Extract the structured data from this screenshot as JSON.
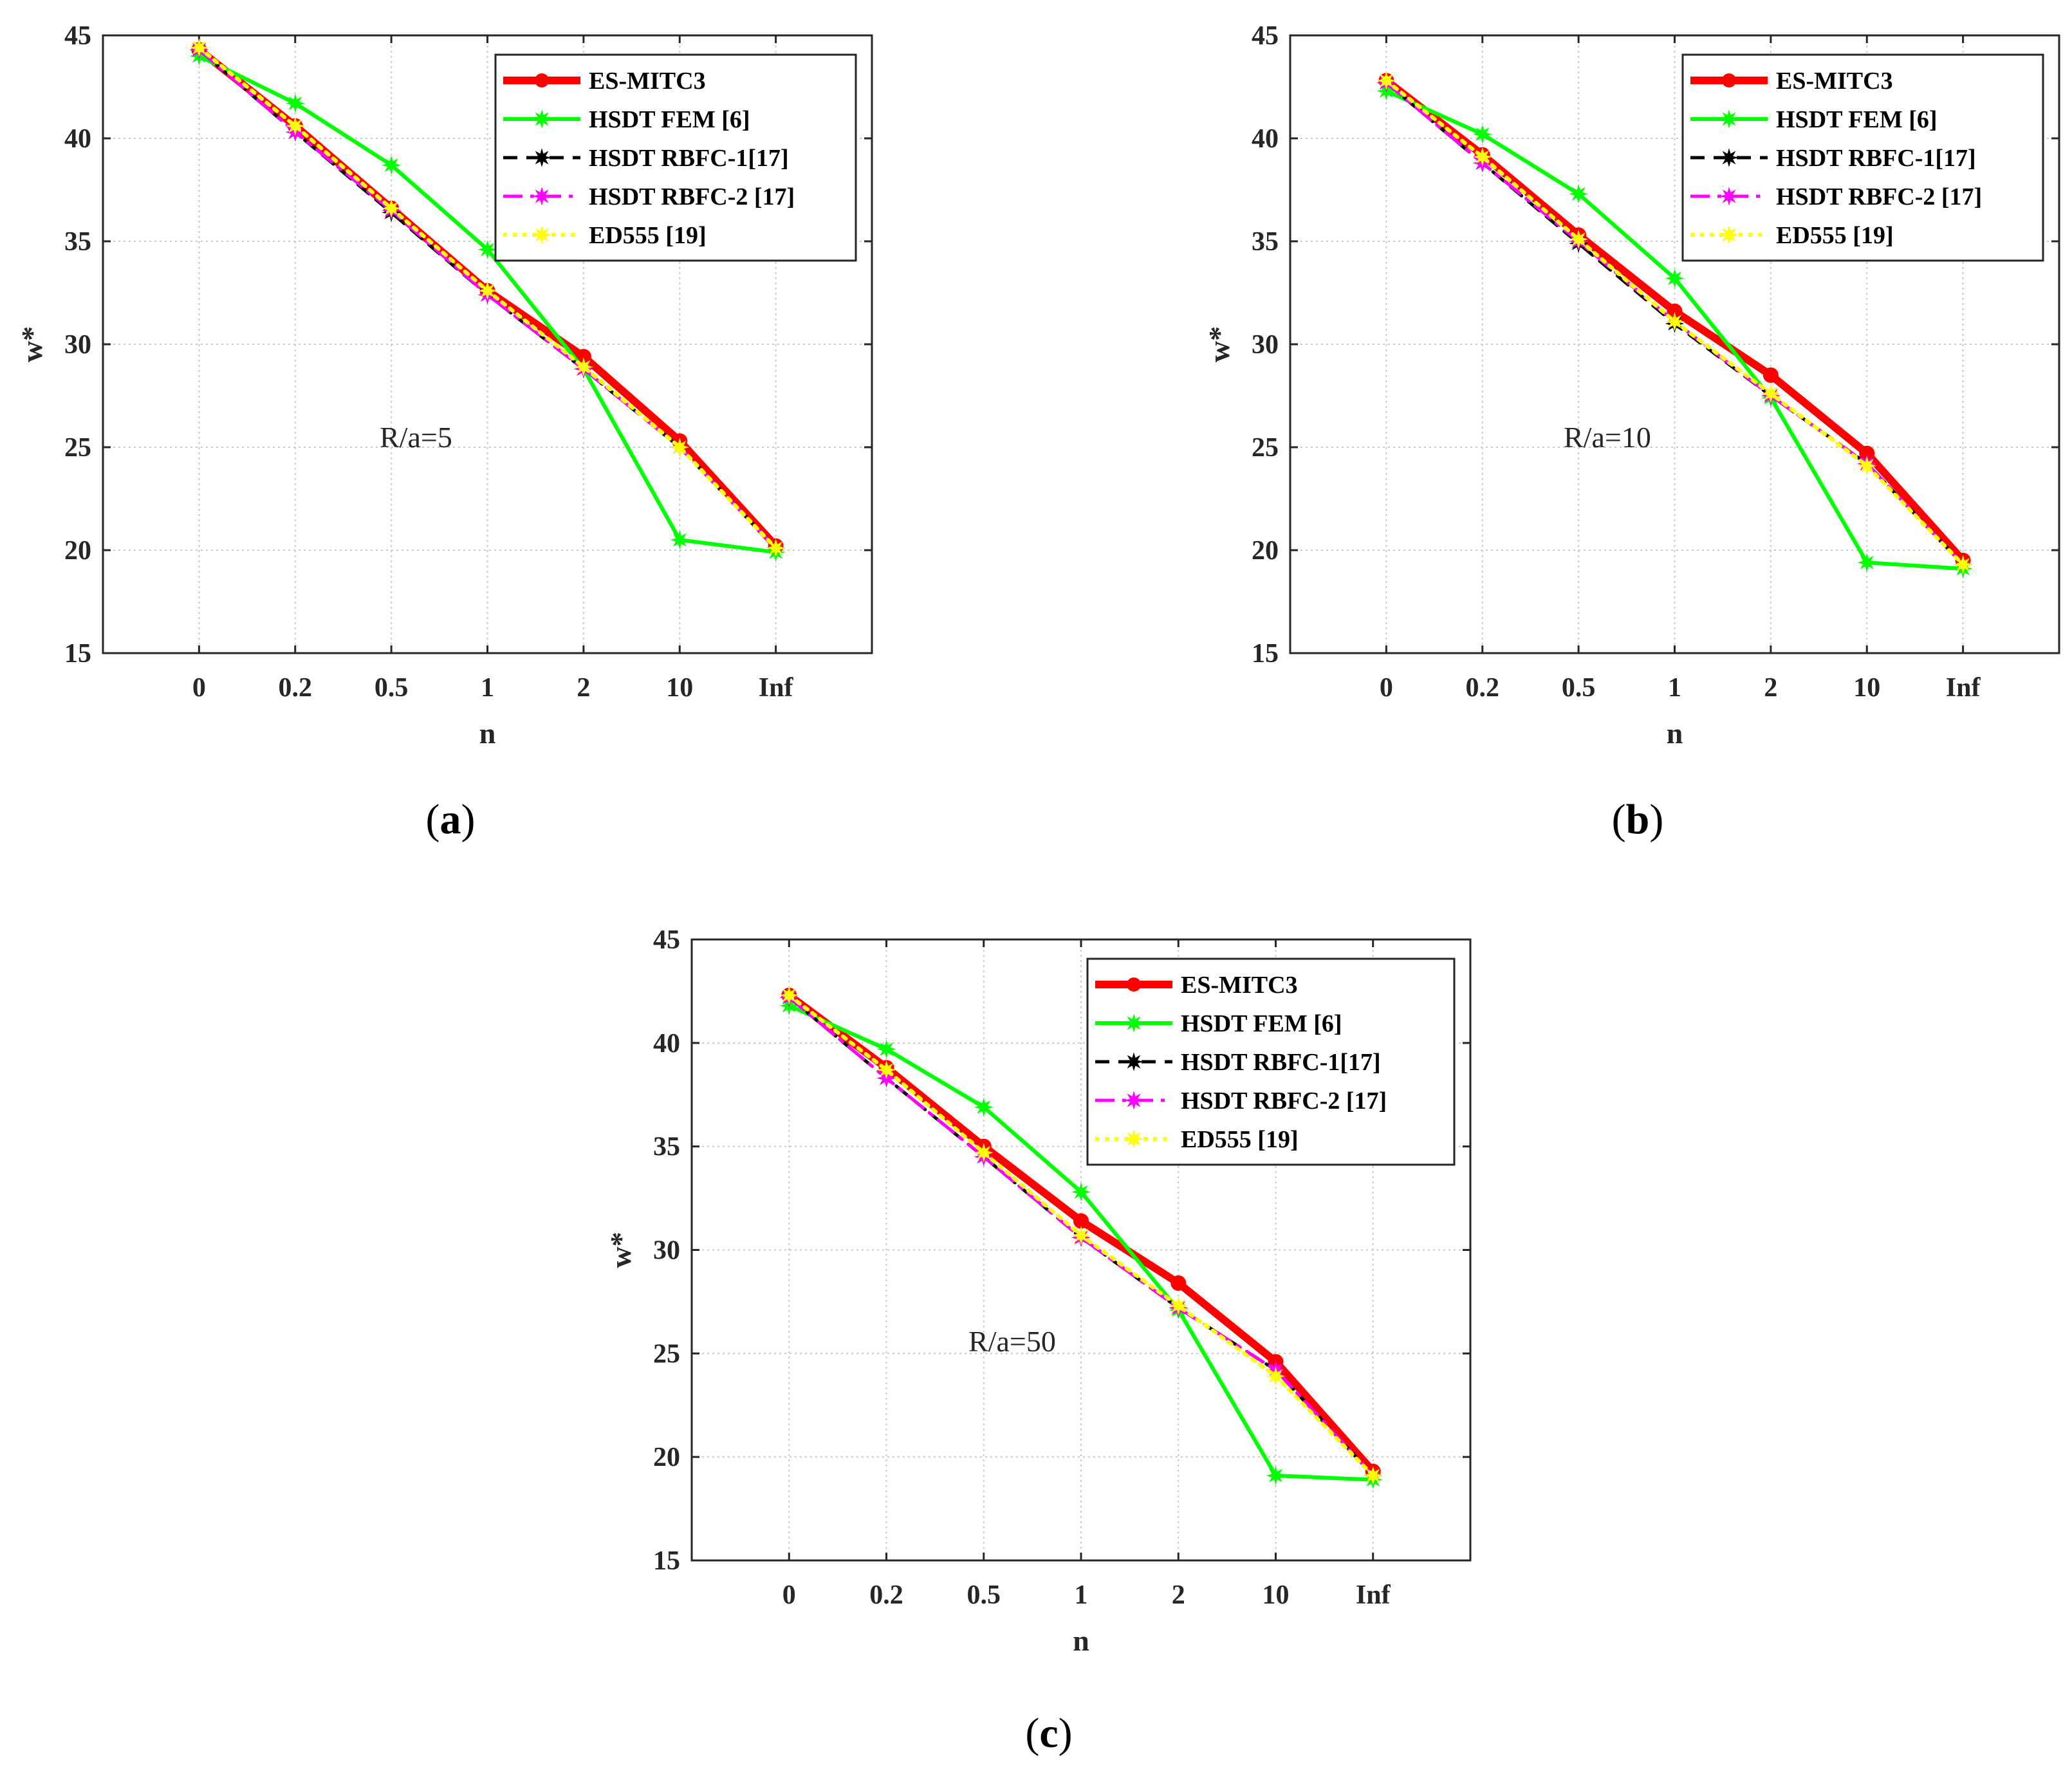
{
  "chart_data": [
    {
      "type": "line",
      "caption": {
        "open": "(",
        "letter": "a",
        "close": ")"
      },
      "annotation": "R/a=5",
      "xlabel": "n",
      "ylabel": "w*",
      "ylim": [
        15,
        45
      ],
      "yticks": [
        "15",
        "20",
        "25",
        "30",
        "35",
        "40",
        "45"
      ],
      "categories": [
        "0",
        "0.2",
        "0.5",
        "1",
        "2",
        "10",
        "Inf"
      ],
      "grid": true,
      "legend_position": "top-right",
      "series": [
        {
          "name": "ES-MITC3",
          "color": "#ff0000",
          "values": [
            44.3,
            40.6,
            36.6,
            32.6,
            29.4,
            25.3,
            20.2
          ]
        },
        {
          "name": "HSDT FEM [6]",
          "color": "#00ff00",
          "values": [
            44.0,
            41.7,
            38.7,
            34.6,
            28.8,
            20.5,
            19.9
          ]
        },
        {
          "name": "HSDT RBFC-1[17]",
          "color": "#000000",
          "values": [
            44.3,
            40.3,
            36.4,
            32.4,
            28.8,
            25.0,
            20.1
          ]
        },
        {
          "name": "HSDT RBFC-2 [17]",
          "color": "#ff00ff",
          "values": [
            44.3,
            40.3,
            36.5,
            32.4,
            28.8,
            25.0,
            20.1
          ]
        },
        {
          "name": "ED555 [19]",
          "color": "#ffff00",
          "values": [
            44.4,
            40.6,
            36.6,
            32.6,
            28.9,
            25.0,
            20.1
          ]
        }
      ]
    },
    {
      "type": "line",
      "caption": {
        "open": "(",
        "letter": "b",
        "close": ")"
      },
      "annotation": "R/a=10",
      "xlabel": "n",
      "ylabel": "w*",
      "ylim": [
        15,
        45
      ],
      "yticks": [
        "15",
        "20",
        "25",
        "30",
        "35",
        "40",
        "45"
      ],
      "categories": [
        "0",
        "0.2",
        "0.5",
        "1",
        "2",
        "10",
        "Inf"
      ],
      "grid": true,
      "legend_position": "top-right",
      "series": [
        {
          "name": "ES-MITC3",
          "color": "#ff0000",
          "values": [
            42.8,
            39.2,
            35.3,
            31.6,
            28.5,
            24.7,
            19.5
          ]
        },
        {
          "name": "HSDT FEM [6]",
          "color": "#00ff00",
          "values": [
            42.3,
            40.2,
            37.3,
            33.2,
            27.4,
            19.4,
            19.1
          ]
        },
        {
          "name": "HSDT RBFC-1[17]",
          "color": "#000000",
          "values": [
            42.7,
            38.8,
            34.9,
            31.0,
            27.5,
            24.2,
            19.3
          ]
        },
        {
          "name": "HSDT RBFC-2 [17]",
          "color": "#ff00ff",
          "values": [
            42.7,
            38.8,
            35.0,
            31.1,
            27.5,
            24.2,
            19.3
          ]
        },
        {
          "name": "ED555 [19]",
          "color": "#ffff00",
          "values": [
            42.8,
            39.1,
            35.1,
            31.1,
            27.6,
            24.1,
            19.3
          ]
        }
      ]
    },
    {
      "type": "line",
      "caption": {
        "open": "(",
        "letter": "c",
        "close": ")"
      },
      "annotation": "R/a=50",
      "xlabel": "n",
      "ylabel": "w*",
      "ylim": [
        15,
        45
      ],
      "yticks": [
        "15",
        "20",
        "25",
        "30",
        "35",
        "40",
        "45"
      ],
      "categories": [
        "0",
        "0.2",
        "0.5",
        "1",
        "2",
        "10",
        "Inf"
      ],
      "grid": true,
      "legend_position": "top-right",
      "series": [
        {
          "name": "ES-MITC3",
          "color": "#ff0000",
          "values": [
            42.3,
            38.8,
            35.0,
            31.4,
            28.4,
            24.6,
            19.3
          ]
        },
        {
          "name": "HSDT FEM [6]",
          "color": "#00ff00",
          "values": [
            41.8,
            39.7,
            36.9,
            32.8,
            27.1,
            19.1,
            18.9
          ]
        },
        {
          "name": "HSDT RBFC-1[17]",
          "color": "#000000",
          "values": [
            42.2,
            38.3,
            34.5,
            30.6,
            27.2,
            24.2,
            19.1
          ]
        },
        {
          "name": "HSDT RBFC-2 [17]",
          "color": "#ff00ff",
          "values": [
            42.2,
            38.3,
            34.5,
            30.6,
            27.2,
            24.2,
            19.1
          ]
        },
        {
          "name": "ED555 [19]",
          "color": "#ffff00",
          "values": [
            42.3,
            38.7,
            34.7,
            30.7,
            27.3,
            23.9,
            19.1
          ]
        }
      ]
    }
  ]
}
